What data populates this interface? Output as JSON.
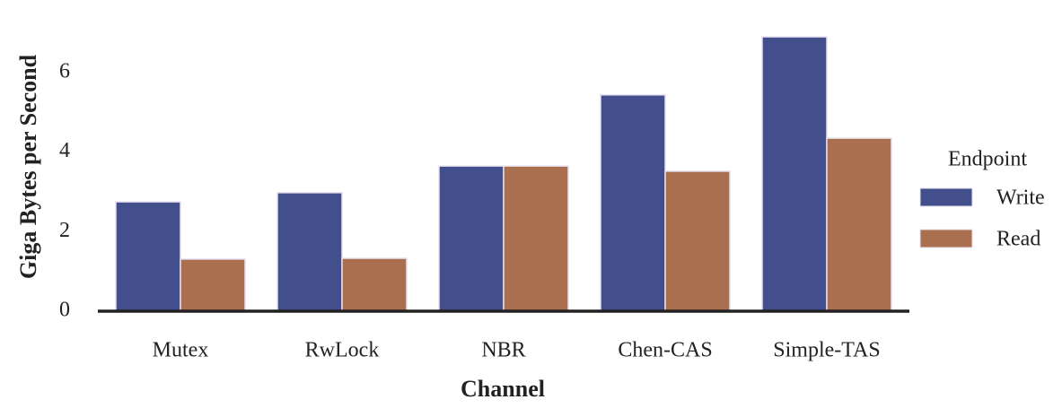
{
  "chart_data": {
    "type": "bar",
    "x_label": "Channel",
    "y_label": "Giga Bytes per Second",
    "categories": [
      "Mutex",
      "RwLock",
      "NBR",
      "Chen-CAS",
      "Simple-TAS"
    ],
    "series": [
      {
        "name": "Write",
        "color": "#434f8c",
        "values": [
          2.75,
          2.98,
          3.65,
          5.44,
          6.9
        ]
      },
      {
        "name": "Read",
        "color": "#a96f4e",
        "values": [
          1.31,
          1.33,
          3.65,
          3.52,
          4.35
        ]
      }
    ],
    "ylim": [
      0,
      7.24
    ],
    "yticks": [
      0,
      2,
      4,
      6
    ],
    "legend_title": "Endpoint",
    "legend_position": "right",
    "grid": false
  }
}
